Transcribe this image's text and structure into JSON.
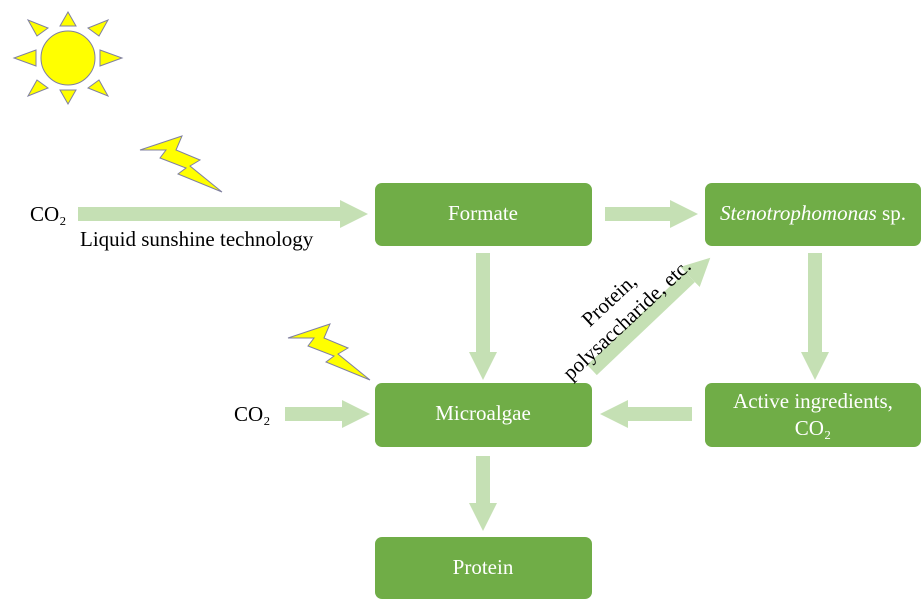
{
  "nodes": [
    {
      "label": "Formate"
    },
    {
      "label": {
        "italic": "Stenotrophomonas",
        "text": "sp."
      }
    },
    {
      "label": "Microalgae"
    },
    {
      "label": [
        "Active ingredients,",
        "CO₂"
      ]
    },
    {
      "label": "Protein"
    }
  ],
  "inputs": [
    {
      "label": "CO₂",
      "note": "Liquid sunshine technology"
    },
    {
      "label": "CO₂"
    }
  ],
  "edge_label": [
    "Protein,",
    "polysaccharide, etc."
  ]
}
